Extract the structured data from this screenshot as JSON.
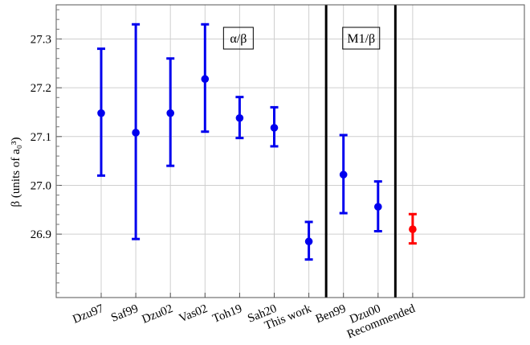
{
  "chart_data": {
    "type": "scatter",
    "ylabel": "β (units of a₀³)",
    "ylim": [
      26.77,
      27.37
    ],
    "yticks": [
      26.9,
      27.0,
      27.1,
      27.2,
      27.3
    ],
    "grid": true,
    "groups": [
      {
        "label": "α/β",
        "start": 0,
        "end": 6
      },
      {
        "label": "M1/β",
        "start": 7,
        "end": 8
      }
    ],
    "points": [
      {
        "category": "Dzu97",
        "value": 27.148,
        "lower": 27.02,
        "upper": 27.28,
        "color": "#0000ee"
      },
      {
        "category": "Saf99",
        "value": 27.108,
        "lower": 26.89,
        "upper": 27.33,
        "color": "#0000ee"
      },
      {
        "category": "Dzu02",
        "value": 27.148,
        "lower": 27.04,
        "upper": 27.26,
        "color": "#0000ee"
      },
      {
        "category": "Vas02",
        "value": 27.218,
        "lower": 27.11,
        "upper": 27.33,
        "color": "#0000ee"
      },
      {
        "category": "Toh19",
        "value": 27.138,
        "lower": 27.097,
        "upper": 27.181,
        "color": "#0000ee"
      },
      {
        "category": "Sah20",
        "value": 27.118,
        "lower": 27.08,
        "upper": 27.16,
        "color": "#0000ee"
      },
      {
        "category": "This work",
        "value": 26.885,
        "lower": 26.848,
        "upper": 26.925,
        "color": "#0000ee"
      },
      {
        "category": "Ben99",
        "value": 27.022,
        "lower": 26.943,
        "upper": 27.103,
        "color": "#0000ee"
      },
      {
        "category": "Dzu00",
        "value": 26.956,
        "lower": 26.906,
        "upper": 27.008,
        "color": "#0000ee"
      },
      {
        "category": "Recommended",
        "value": 26.91,
        "lower": 26.881,
        "upper": 26.941,
        "color": "#ff0000"
      }
    ]
  }
}
